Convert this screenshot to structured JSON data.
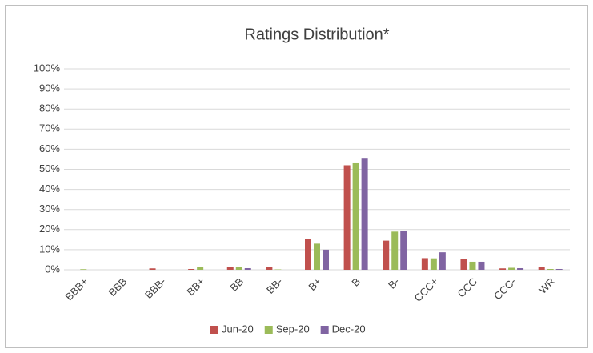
{
  "chart_data": {
    "type": "bar",
    "title": "Ratings Distribution*",
    "categories": [
      "BBB+",
      "BBB",
      "BBB-",
      "BB+",
      "BB",
      "BB-",
      "B+",
      "B",
      "B-",
      "CCC+",
      "CCC",
      "CCC-",
      "WR"
    ],
    "series": [
      {
        "name": "Jun-20",
        "color": "#c0504d",
        "values": [
          0,
          0,
          0.7,
          0.4,
          1.5,
          1.2,
          15.5,
          52,
          14.5,
          5.8,
          5.3,
          0.7,
          1.5
        ]
      },
      {
        "name": "Sep-20",
        "color": "#9bbb59",
        "values": [
          0.3,
          0,
          0,
          1.3,
          1.2,
          0.2,
          13,
          53,
          19,
          5.7,
          4,
          1,
          0.4
        ]
      },
      {
        "name": "Dec-20",
        "color": "#8064a2",
        "values": [
          0,
          0,
          0,
          0,
          0.8,
          0,
          10,
          55.3,
          19.5,
          8.7,
          4,
          0.8,
          0.4
        ]
      }
    ],
    "ylim": [
      0,
      100
    ],
    "yticks": [
      {
        "value": 0,
        "label": "0%"
      },
      {
        "value": 10,
        "label": "10%"
      },
      {
        "value": 20,
        "label": "20%"
      },
      {
        "value": 30,
        "label": "30%"
      },
      {
        "value": 40,
        "label": "40%"
      },
      {
        "value": 50,
        "label": "50%"
      },
      {
        "value": 60,
        "label": "60%"
      },
      {
        "value": 70,
        "label": "70%"
      },
      {
        "value": 80,
        "label": "80%"
      },
      {
        "value": 90,
        "label": "90%"
      },
      {
        "value": 100,
        "label": "100%"
      }
    ],
    "grid": true,
    "legend": "bottom"
  }
}
